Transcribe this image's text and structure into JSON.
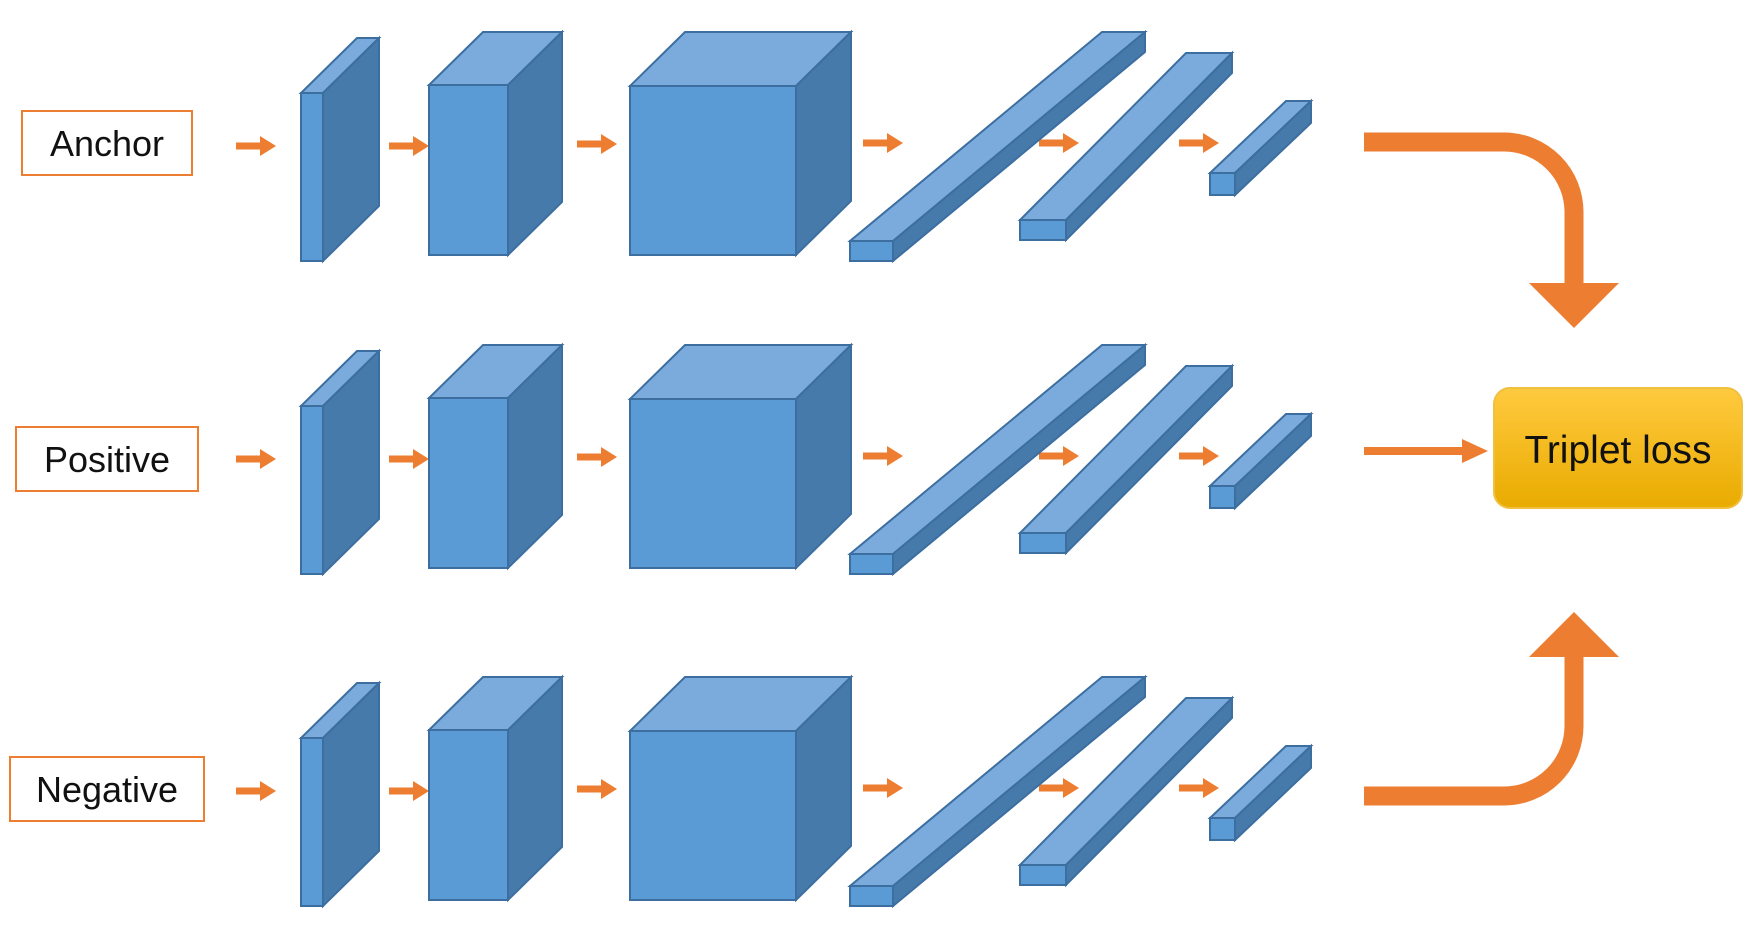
{
  "inputs": [
    {
      "label": "Anchor"
    },
    {
      "label": "Positive"
    },
    {
      "label": "Negative"
    }
  ],
  "loss": {
    "label": "Triplet loss"
  },
  "colors": {
    "block_front": "#5b9bd5",
    "block_top": "#7aabdc",
    "block_side": "#467aaa",
    "block_stroke": "#3c6ea0",
    "arrow": "#ed7d31",
    "label_border": "#ed7d31",
    "loss_top": "#ffc83d",
    "loss_bottom": "#e6a800"
  }
}
